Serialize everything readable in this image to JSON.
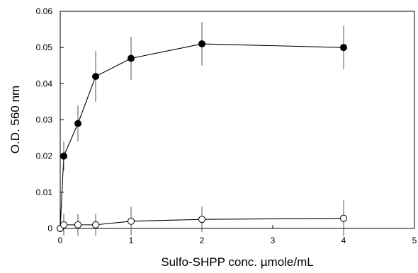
{
  "chart_data": {
    "type": "line",
    "xlabel": "Sulfo-SHPP conc. µmole/mL",
    "ylabel": "O.D. 560 nm",
    "xlim": [
      0,
      5
    ],
    "ylim": [
      0,
      0.06
    ],
    "x_ticks": [
      0,
      1,
      2,
      3,
      4,
      5
    ],
    "y_ticks": [
      0,
      0.01,
      0.02,
      0.03,
      0.04,
      0.05,
      0.06
    ],
    "x_tick_labels": [
      "0",
      "1",
      "2",
      "3",
      "4",
      "5"
    ],
    "y_tick_labels": [
      "0",
      "0.01",
      "0.02",
      "0.03",
      "0.04",
      "0.05",
      "0.06"
    ],
    "grid": false,
    "series": [
      {
        "marker": "filled-circle",
        "color": "#000000",
        "points": [
          {
            "x": 0,
            "y": 0,
            "err": 0
          },
          {
            "x": 0.05,
            "y": 0.02,
            "err": 0.004
          },
          {
            "x": 0.25,
            "y": 0.029,
            "err": 0.005
          },
          {
            "x": 0.5,
            "y": 0.042,
            "err": 0.007
          },
          {
            "x": 1,
            "y": 0.047,
            "err": 0.006
          },
          {
            "x": 2,
            "y": 0.051,
            "err": 0.006
          },
          {
            "x": 4,
            "y": 0.05,
            "err": 0.006
          }
        ]
      },
      {
        "marker": "open-circle",
        "color": "#000000",
        "points": [
          {
            "x": 0,
            "y": 0,
            "err": 0
          },
          {
            "x": 0.05,
            "y": 0.001,
            "err": 0.003
          },
          {
            "x": 0.25,
            "y": 0.001,
            "err": 0.003
          },
          {
            "x": 0.5,
            "y": 0.001,
            "err": 0.003
          },
          {
            "x": 1,
            "y": 0.002,
            "err": 0.004
          },
          {
            "x": 2,
            "y": 0.0025,
            "err": 0.0035
          },
          {
            "x": 4,
            "y": 0.0028,
            "err": 0.005
          }
        ]
      }
    ]
  }
}
